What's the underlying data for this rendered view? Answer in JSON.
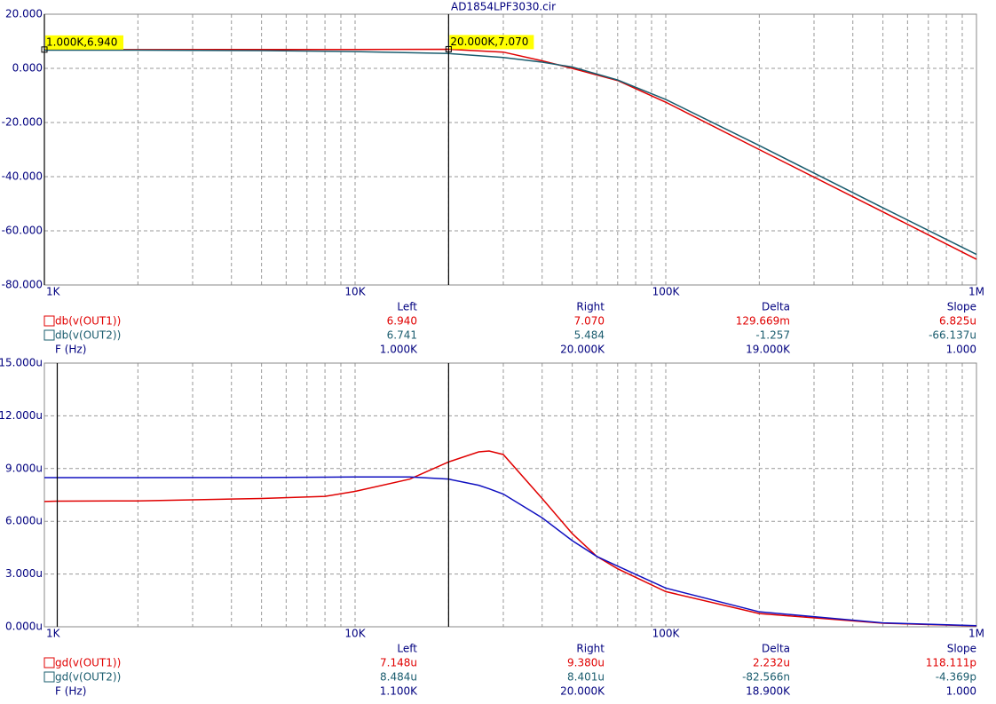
{
  "chart_data": [
    {
      "type": "line",
      "title": "AD1854LPF3030.cir",
      "log_x": true,
      "grid": true,
      "x": [
        1000,
        2000,
        5000,
        10000,
        20000,
        30000,
        40000,
        50000,
        70000,
        100000,
        200000,
        500000,
        1000000
      ],
      "xlim": [
        1000,
        1000000
      ],
      "xticks": [
        {
          "value": 1000,
          "label": "1K"
        },
        {
          "value": 10000,
          "label": "10K"
        },
        {
          "value": 100000,
          "label": "100K"
        },
        {
          "value": 1000000,
          "label": "1M"
        }
      ],
      "ylim": [
        -80,
        20
      ],
      "yticks": [
        {
          "value": -80,
          "label": "-80.000"
        },
        {
          "value": -60,
          "label": "-60.000"
        },
        {
          "value": -40,
          "label": "-40.000"
        },
        {
          "value": -20,
          "label": "-20.000"
        },
        {
          "value": 0,
          "label": "0.000"
        },
        {
          "value": 20,
          "label": "20.000"
        }
      ],
      "cursors": [
        1000,
        20000
      ],
      "annotations": [
        "1.000K,6.940",
        "20.000K,7.070"
      ],
      "series": [
        {
          "name": "db(v(OUT1))",
          "color": "#e00000",
          "values": [
            6.94,
            6.94,
            6.95,
            6.98,
            7.07,
            6.0,
            2.8,
            0.0,
            -4.5,
            -12.5,
            -30,
            -53,
            -70.5
          ]
        },
        {
          "name": "db(v(OUT2))",
          "color": "#1a5c6e",
          "values": [
            6.74,
            6.72,
            6.55,
            6.2,
            5.48,
            4.0,
            2.3,
            0.5,
            -4.3,
            -11.5,
            -28.5,
            -51.5,
            -68.7
          ]
        }
      ],
      "readout": {
        "columns": [
          "Left",
          "Right",
          "Delta",
          "Slope"
        ],
        "x_label": "F (Hz)",
        "rows": [
          [
            "6.940",
            "7.070",
            "129.669m",
            "6.825u"
          ],
          [
            "6.741",
            "5.484",
            "-1.257",
            "-66.137u"
          ],
          [
            "1.000K",
            "20.000K",
            "19.000K",
            "1.000"
          ]
        ]
      }
    },
    {
      "type": "line",
      "log_x": true,
      "grid": true,
      "x": [
        1000,
        1100,
        2000,
        5000,
        8000,
        10000,
        15000,
        20000,
        25000,
        27000,
        30000,
        40000,
        50000,
        60000,
        70000,
        100000,
        200000,
        500000,
        1000000
      ],
      "xlim": [
        1000,
        1000000
      ],
      "xticks": [
        {
          "value": 1000,
          "label": "1K"
        },
        {
          "value": 10000,
          "label": "10K"
        },
        {
          "value": 100000,
          "label": "100K"
        },
        {
          "value": 1000000,
          "label": "1M"
        }
      ],
      "ylim": [
        0,
        15
      ],
      "yticks": [
        {
          "value": 0,
          "label": "0.000u"
        },
        {
          "value": 3,
          "label": "3.000u"
        },
        {
          "value": 6,
          "label": "6.000u"
        },
        {
          "value": 9,
          "label": "9.000u"
        },
        {
          "value": 12,
          "label": "12.000u"
        },
        {
          "value": 15,
          "label": "15.000u"
        }
      ],
      "cursors": [
        1100,
        20000
      ],
      "series": [
        {
          "name": "gd(v(OUT1))",
          "color": "#e00000",
          "values": [
            7.13,
            7.148,
            7.16,
            7.3,
            7.42,
            7.7,
            8.4,
            9.38,
            9.95,
            10.0,
            9.8,
            7.3,
            5.3,
            4.0,
            3.3,
            2.0,
            0.75,
            0.2,
            0.05
          ]
        },
        {
          "name": "gd(v(OUT2))",
          "color": "#1010c0",
          "values": [
            8.484,
            8.484,
            8.485,
            8.49,
            8.51,
            8.52,
            8.52,
            8.4,
            8.05,
            7.85,
            7.55,
            6.2,
            4.9,
            4.0,
            3.45,
            2.2,
            0.85,
            0.22,
            0.06
          ]
        }
      ],
      "readout": {
        "columns": [
          "Left",
          "Right",
          "Delta",
          "Slope"
        ],
        "x_label": "F (Hz)",
        "rows": [
          [
            "7.148u",
            "9.380u",
            "2.232u",
            "118.111p"
          ],
          [
            "8.484u",
            "8.401u",
            "-82.566n",
            "-4.369p"
          ],
          [
            "1.100K",
            "20.000K",
            "18.900K",
            "1.000"
          ]
        ]
      }
    }
  ]
}
